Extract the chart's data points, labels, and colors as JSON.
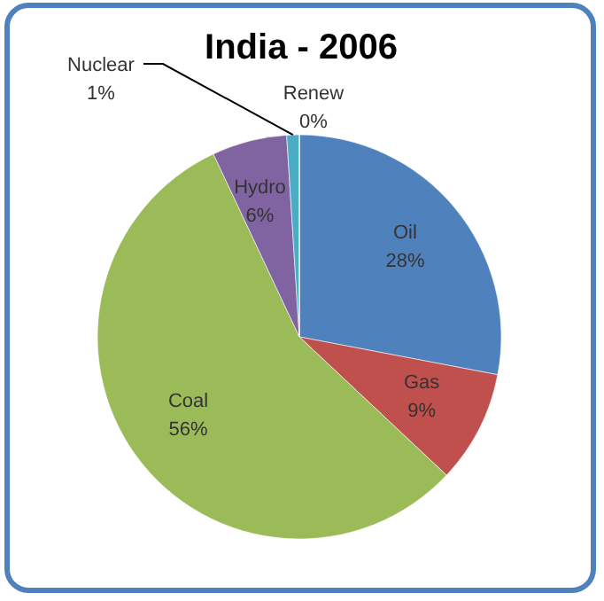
{
  "chart_data": {
    "type": "pie",
    "title": "India - 2006",
    "categories": [
      "Oil",
      "Gas",
      "Coal",
      "Hydro",
      "Nuclear",
      "Renew"
    ],
    "values": [
      28,
      9,
      56,
      6,
      1,
      0
    ],
    "colors": [
      "#4f81bd",
      "#c0504d",
      "#9bbb59",
      "#8064a2",
      "#4bacc6",
      "#f79646"
    ],
    "value_labels": [
      "28%",
      "9%",
      "56%",
      "6%",
      "1%",
      "0%"
    ],
    "legend": false
  }
}
